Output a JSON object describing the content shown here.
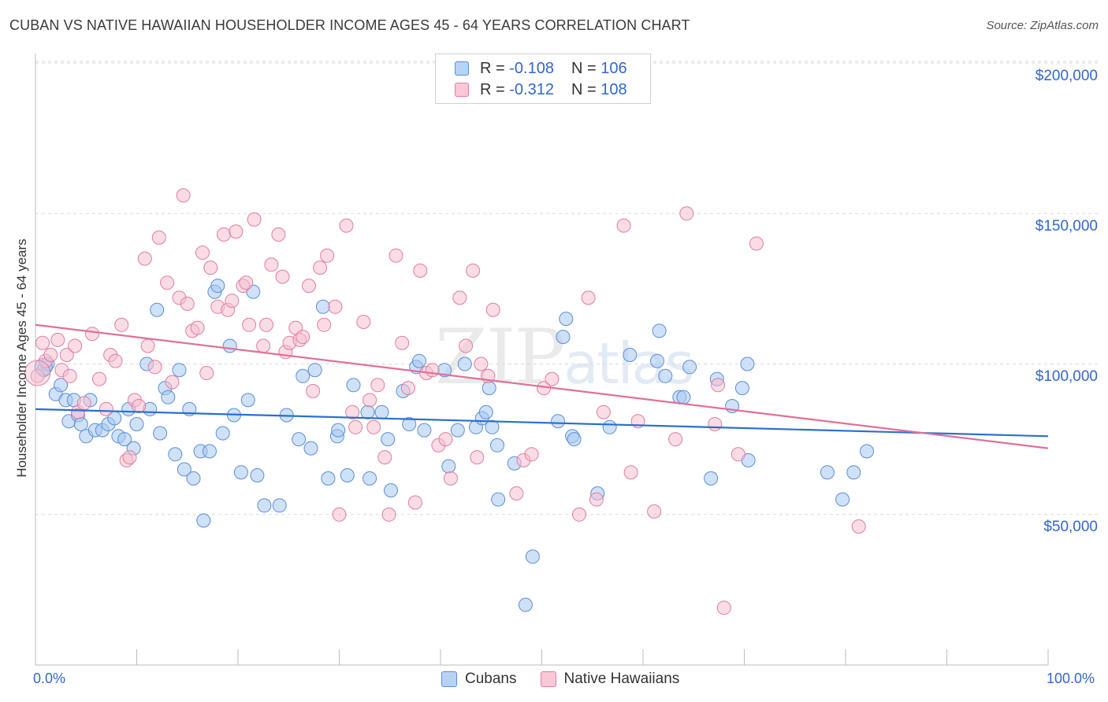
{
  "title": "CUBAN VS NATIVE HAWAIIAN HOUSEHOLDER INCOME AGES 45 - 64 YEARS CORRELATION CHART",
  "source": "Source: ZipAtlas.com",
  "watermark": {
    "zip": "ZIP",
    "atlas": "atlas"
  },
  "legend_top": [
    {
      "r_label": "R = ",
      "r_value": "-0.108",
      "n_label": "N = ",
      "n_value": "106"
    },
    {
      "r_label": "R = ",
      "r_value": "-0.312",
      "n_label": "N = ",
      "n_value": "108"
    }
  ],
  "colors": {
    "cuban_fill": "#a8c8f0",
    "cuban_stroke": "#5a8fd6",
    "cuban_line": "#2a6fd0",
    "hawaiian_fill": "#f6bfd0",
    "hawaiian_stroke": "#e07ea0",
    "hawaiian_line": "#e0709a",
    "accent": "#3366cc",
    "grid": "#d9d9d9"
  },
  "chart_data": {
    "type": "scatter",
    "xlabel": "",
    "ylabel": "Householder Income Ages 45 - 64 years",
    "xlim": [
      0,
      100
    ],
    "ylim": [
      0,
      210000
    ],
    "x_tick_labels": [
      "0.0%",
      "100.0%"
    ],
    "y_ticks": [
      50000,
      100000,
      150000,
      200000
    ],
    "y_tick_labels": [
      "$50,000",
      "$100,000",
      "$150,000",
      "$200,000"
    ],
    "grid": true,
    "legend_placement": "top-center",
    "series": [
      {
        "name": "Cubans",
        "trend": [
          [
            0,
            85000
          ],
          [
            100,
            76000
          ]
        ],
        "points": [
          [
            0.8,
            98000
          ],
          [
            1.2,
            100000
          ],
          [
            2,
            90000
          ],
          [
            2.5,
            93000
          ],
          [
            3,
            88000
          ],
          [
            3.3,
            81000
          ],
          [
            3.8,
            88000
          ],
          [
            4.2,
            83000
          ],
          [
            4.5,
            80000
          ],
          [
            5,
            76000
          ],
          [
            5.4,
            88000
          ],
          [
            5.9,
            78000
          ],
          [
            6.6,
            78000
          ],
          [
            7.2,
            80000
          ],
          [
            7.8,
            82000
          ],
          [
            8.2,
            76000
          ],
          [
            8.8,
            75000
          ],
          [
            9.2,
            85000
          ],
          [
            9.7,
            72000
          ],
          [
            10,
            80000
          ],
          [
            11,
            100000
          ],
          [
            11.3,
            85000
          ],
          [
            12,
            118000
          ],
          [
            12.3,
            77000
          ],
          [
            12.8,
            92000
          ],
          [
            13.1,
            89000
          ],
          [
            13.8,
            70000
          ],
          [
            14.2,
            98000
          ],
          [
            14.7,
            65000
          ],
          [
            15.2,
            85000
          ],
          [
            15.6,
            62000
          ],
          [
            16.3,
            71000
          ],
          [
            16.6,
            48000
          ],
          [
            17.2,
            71000
          ],
          [
            17.7,
            124000
          ],
          [
            18,
            126000
          ],
          [
            18.5,
            77000
          ],
          [
            19.2,
            106000
          ],
          [
            19.6,
            83000
          ],
          [
            20.3,
            64000
          ],
          [
            21,
            88000
          ],
          [
            21.5,
            124000
          ],
          [
            21.9,
            63000
          ],
          [
            22.6,
            53000
          ],
          [
            24.1,
            53000
          ],
          [
            24.8,
            83000
          ],
          [
            26,
            75000
          ],
          [
            26.4,
            96000
          ],
          [
            27.2,
            72000
          ],
          [
            27.6,
            98000
          ],
          [
            28.4,
            119000
          ],
          [
            28.9,
            62000
          ],
          [
            29.8,
            76000
          ],
          [
            29.9,
            78000
          ],
          [
            30.8,
            63000
          ],
          [
            31.4,
            93000
          ],
          [
            32.8,
            84000
          ],
          [
            33,
            62000
          ],
          [
            34.2,
            84000
          ],
          [
            34.8,
            75000
          ],
          [
            35.1,
            58000
          ],
          [
            36.3,
            91000
          ],
          [
            36.9,
            80000
          ],
          [
            37.6,
            99000
          ],
          [
            37.9,
            101000
          ],
          [
            38.4,
            78000
          ],
          [
            40.4,
            98000
          ],
          [
            40.8,
            66000
          ],
          [
            41.7,
            78000
          ],
          [
            42.4,
            100000
          ],
          [
            43.5,
            79000
          ],
          [
            44.1,
            82000
          ],
          [
            44.5,
            84000
          ],
          [
            44.8,
            92000
          ],
          [
            45.1,
            79000
          ],
          [
            45.6,
            73000
          ],
          [
            45.7,
            55000
          ],
          [
            47.3,
            67000
          ],
          [
            48.4,
            20000
          ],
          [
            49.1,
            36000
          ],
          [
            51.6,
            81000
          ],
          [
            52.1,
            109000
          ],
          [
            52.4,
            115000
          ],
          [
            53,
            76000
          ],
          [
            53.2,
            75000
          ],
          [
            55.5,
            57000
          ],
          [
            56.7,
            79000
          ],
          [
            58.7,
            103000
          ],
          [
            61.4,
            101000
          ],
          [
            61.6,
            111000
          ],
          [
            62.2,
            96000
          ],
          [
            63.6,
            89000
          ],
          [
            64,
            89000
          ],
          [
            64.6,
            99000
          ],
          [
            66.7,
            62000
          ],
          [
            67.3,
            95000
          ],
          [
            68.8,
            86000
          ],
          [
            69.8,
            92000
          ],
          [
            70.3,
            100000
          ],
          [
            70.4,
            68000
          ],
          [
            78.2,
            64000
          ],
          [
            79.7,
            55000
          ],
          [
            80.8,
            64000
          ],
          [
            82.1,
            71000
          ]
        ]
      },
      {
        "name": "Native Hawaiians",
        "trend": [
          [
            0,
            113000
          ],
          [
            100,
            72000
          ]
        ],
        "points": [
          [
            0.2,
            96000
          ],
          [
            0.7,
            107000
          ],
          [
            1,
            101000
          ],
          [
            1.5,
            103000
          ],
          [
            2.2,
            108000
          ],
          [
            2.6,
            98000
          ],
          [
            3.1,
            103000
          ],
          [
            3.4,
            96000
          ],
          [
            3.9,
            106000
          ],
          [
            4.2,
            84000
          ],
          [
            4.8,
            87000
          ],
          [
            5.6,
            110000
          ],
          [
            6.3,
            95000
          ],
          [
            7,
            85000
          ],
          [
            7.4,
            103000
          ],
          [
            7.9,
            101000
          ],
          [
            8.5,
            113000
          ],
          [
            9,
            68000
          ],
          [
            9.3,
            69000
          ],
          [
            9.8,
            88000
          ],
          [
            10.2,
            86000
          ],
          [
            10.8,
            135000
          ],
          [
            11.1,
            106000
          ],
          [
            11.8,
            99000
          ],
          [
            12.2,
            142000
          ],
          [
            13,
            127000
          ],
          [
            13.5,
            94000
          ],
          [
            14.2,
            122000
          ],
          [
            14.6,
            156000
          ],
          [
            15,
            120000
          ],
          [
            15.5,
            111000
          ],
          [
            16,
            112000
          ],
          [
            16.5,
            137000
          ],
          [
            16.9,
            97000
          ],
          [
            17.3,
            132000
          ],
          [
            18,
            119000
          ],
          [
            18.6,
            143000
          ],
          [
            19,
            118000
          ],
          [
            19.4,
            121000
          ],
          [
            19.8,
            144000
          ],
          [
            20.5,
            126000
          ],
          [
            20.8,
            127000
          ],
          [
            21.1,
            113000
          ],
          [
            21.6,
            148000
          ],
          [
            22.5,
            106000
          ],
          [
            22.8,
            113000
          ],
          [
            23.3,
            133000
          ],
          [
            24,
            143000
          ],
          [
            24.4,
            129000
          ],
          [
            24.7,
            104000
          ],
          [
            25.1,
            107000
          ],
          [
            25.7,
            112000
          ],
          [
            26.1,
            108000
          ],
          [
            26.4,
            109000
          ],
          [
            27,
            126000
          ],
          [
            27.4,
            91000
          ],
          [
            28.1,
            132000
          ],
          [
            28.5,
            113000
          ],
          [
            28.8,
            136000
          ],
          [
            29.6,
            119000
          ],
          [
            30,
            50000
          ],
          [
            30.7,
            146000
          ],
          [
            31.3,
            84000
          ],
          [
            31.6,
            79000
          ],
          [
            32.4,
            114000
          ],
          [
            33,
            88000
          ],
          [
            33.4,
            79000
          ],
          [
            33.8,
            93000
          ],
          [
            34.5,
            69000
          ],
          [
            34.9,
            50000
          ],
          [
            35.6,
            136000
          ],
          [
            36.2,
            107000
          ],
          [
            36.8,
            92000
          ],
          [
            37.5,
            54000
          ],
          [
            38,
            131000
          ],
          [
            38.6,
            97000
          ],
          [
            39.2,
            98000
          ],
          [
            39.8,
            73000
          ],
          [
            40.5,
            75000
          ],
          [
            41,
            62000
          ],
          [
            41.9,
            122000
          ],
          [
            42.5,
            106000
          ],
          [
            43.2,
            131000
          ],
          [
            43.6,
            69000
          ],
          [
            44,
            100000
          ],
          [
            44.7,
            96000
          ],
          [
            45.2,
            118000
          ],
          [
            47.5,
            57000
          ],
          [
            48.2,
            68000
          ],
          [
            49,
            70000
          ],
          [
            50.2,
            92000
          ],
          [
            51,
            95000
          ],
          [
            53.7,
            50000
          ],
          [
            54.6,
            122000
          ],
          [
            55.4,
            55000
          ],
          [
            56.1,
            84000
          ],
          [
            58.1,
            146000
          ],
          [
            58.8,
            64000
          ],
          [
            59.5,
            81000
          ],
          [
            61.1,
            51000
          ],
          [
            63.2,
            75000
          ],
          [
            64.3,
            150000
          ],
          [
            67.1,
            80000
          ],
          [
            67.4,
            93000
          ],
          [
            68,
            19000
          ],
          [
            69.4,
            70000
          ],
          [
            71.2,
            140000
          ],
          [
            81.3,
            46000
          ]
        ]
      }
    ]
  }
}
